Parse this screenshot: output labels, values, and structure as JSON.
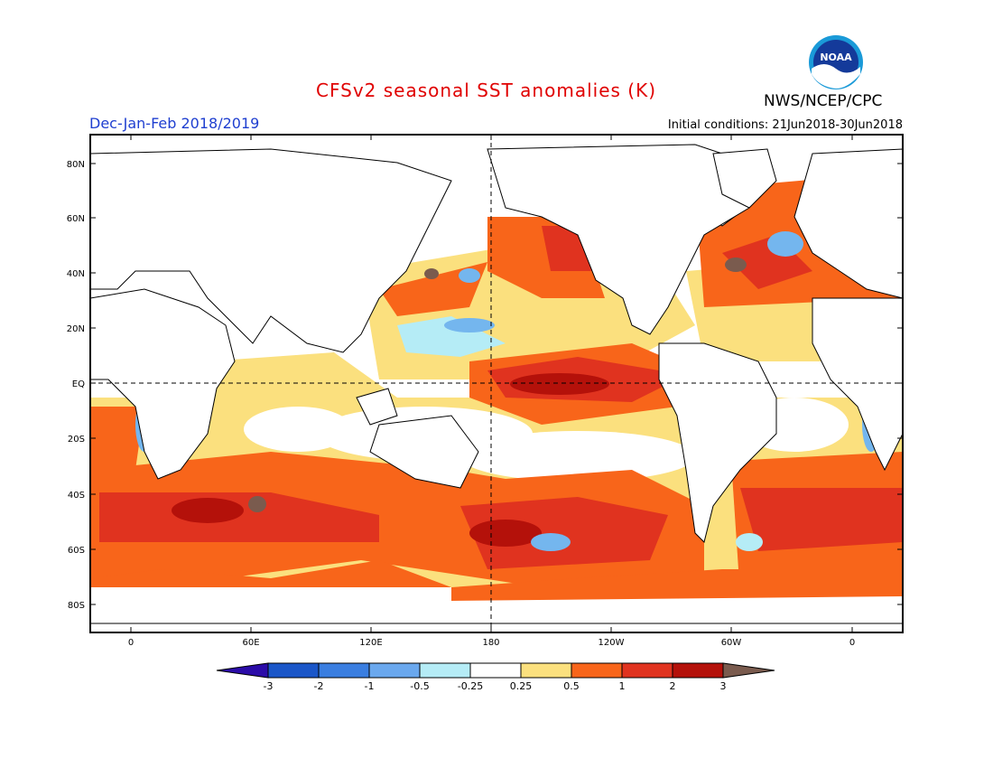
{
  "header": {
    "title": "CFSv2 seasonal SST anomalies (K)",
    "season": "Dec-Jan-Feb 2018/2019",
    "agency": "NWS/NCEP/CPC",
    "initial_conditions": "Initial conditions: 21Jun2018-30Jun2018",
    "logo_text": "NOAA"
  },
  "map": {
    "lat_labels": [
      "80N",
      "60N",
      "40N",
      "20N",
      "EQ",
      "20S",
      "40S",
      "60S",
      "80S"
    ],
    "lon_labels": [
      "0",
      "60E",
      "120E",
      "180",
      "120W",
      "60W",
      "0"
    ],
    "colors": {
      "ocean_neutral": "#ffffff",
      "land": "#ffffff",
      "coast": "#000000",
      "warm_0_25": "#fbe07e",
      "warm_0_5": "#f8651a",
      "warm_1": "#e0331f",
      "warm_2": "#b4110a",
      "warm_3": "#7a5b4e",
      "cool_0_25": "#b5ecf6",
      "cool_0_5": "#74b6ee",
      "cool_1": "#4a8fe6"
    }
  },
  "colorbar": {
    "tick_labels": [
      "-3",
      "-2",
      "-1",
      "-0.5",
      "-0.25",
      "0.25",
      "0.5",
      "1",
      "2",
      "3"
    ],
    "colors": [
      "#2b0ca8",
      "#1a56c8",
      "#3a7ee0",
      "#6aa8ee",
      "#b5ecf6",
      "#ffffff",
      "#fbe07e",
      "#f8651a",
      "#e0331f",
      "#b4110a",
      "#7a5b4e"
    ]
  }
}
